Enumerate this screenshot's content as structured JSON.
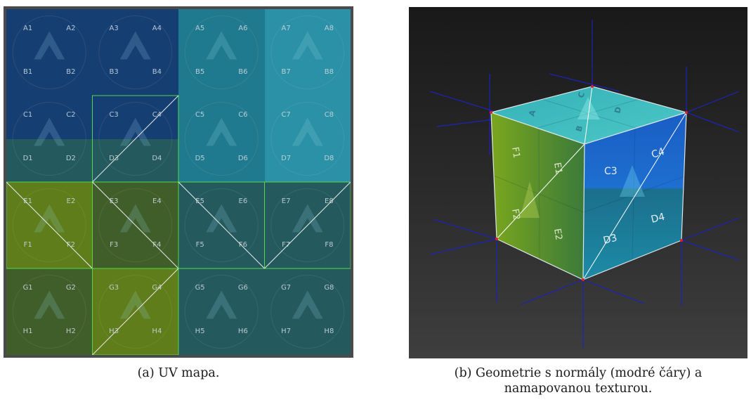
{
  "uv_map": {
    "rows": [
      [
        "A1",
        "A2",
        "A3",
        "A4",
        "A5",
        "A6",
        "A7",
        "A8"
      ],
      [
        "B1",
        "B2",
        "B3",
        "B4",
        "B5",
        "B6",
        "B7",
        "B8"
      ],
      [
        "C1",
        "C2",
        "C3",
        "C4",
        "C5",
        "C6",
        "C7",
        "C8"
      ],
      [
        "D1",
        "D2",
        "D3",
        "D4",
        "D5",
        "D6",
        "D7",
        "D8"
      ],
      [
        "E1",
        "E2",
        "E3",
        "E4",
        "E5",
        "E6",
        "E7",
        "E8"
      ],
      [
        "F1",
        "F2",
        "F3",
        "F4",
        "F5",
        "F6",
        "F7",
        "F8"
      ],
      [
        "G1",
        "G2",
        "G3",
        "G4",
        "G5",
        "G6",
        "G7",
        "G8"
      ],
      [
        "H1",
        "H2",
        "H3",
        "H4",
        "H5",
        "H6",
        "H7",
        "H8"
      ]
    ],
    "colors": {
      "dark_blue": "#153f73",
      "teal": "#1f7a8f",
      "teal_light": "#2b91a6",
      "olive": "#5f7d1a",
      "olive_dark": "#3f5e2a",
      "dark_teal": "#245a5e",
      "highlight_green": "#52d84a",
      "diagonal": "#e8e8e8"
    }
  },
  "cube_labels": {
    "front_top_left": "C3",
    "front_top_right": "C4",
    "front_bottom_left": "D3",
    "front_bottom_right": "D4",
    "left_top_left": "F1",
    "left_top_right": "E1",
    "left_bottom_left": "F2",
    "left_bottom_right": "E2"
  },
  "normals_color": "#1d23b8",
  "captions": {
    "a": "(a) UV mapa.",
    "b_line1": "(b) Geometrie s normály (modré čáry) a",
    "b_line2": "namapovanou texturou."
  }
}
